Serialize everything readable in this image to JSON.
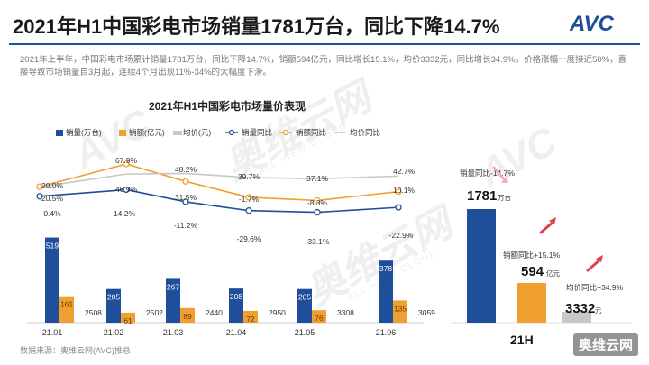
{
  "header": {
    "title": "2021年H1中国彩电市场销量1781万台，同比下降14.7%",
    "logo_text": "AVC",
    "summary": "2021年上半年，中国彩电市场累计销量1781万台，同比下降14.7%，销额594亿元，同比增长15.1%，均价3332元，同比增长34.9%。价格涨幅一度接近50%，直接导致市场销量自3月起，连续4个月出现11%-34%的大幅度下滑。"
  },
  "watermark": {
    "text": "奥维云网",
    "sub": "ALL VIEW CLOUD",
    "brand": "奥维云网"
  },
  "source": "数据来源：奥维云网(AVC)推总",
  "colors": {
    "volume": "#1f4e9a",
    "amount": "#f0a030",
    "price": "#c8c8c8",
    "accent": "#e04050"
  },
  "chart_data": [
    {
      "type": "bar",
      "title": "2021年H1中国彩电市场量价表现",
      "categories": [
        "21.01",
        "21.02",
        "21.03",
        "21.04",
        "21.05",
        "21.06"
      ],
      "series": [
        {
          "name": "销量(万台)",
          "type": "bar",
          "values": [
            519,
            205,
            267,
            208,
            205,
            378
          ]
        },
        {
          "name": "销额(亿元)",
          "type": "bar",
          "values": [
            161,
            61,
            89,
            72,
            76,
            135
          ]
        },
        {
          "name": "均价(元)",
          "type": "value-labels",
          "values": [
            2508,
            2502,
            2440,
            2950,
            3308,
            3059
          ]
        },
        {
          "name": "销量同比",
          "type": "line",
          "values": [
            0.4,
            14.2,
            -11.2,
            -29.6,
            -33.1,
            -22.9
          ],
          "labels": [
            "0.4%",
            "14.2%",
            "-11.2%",
            "-29.6%",
            "-33.1%",
            "-22.9%"
          ]
        },
        {
          "name": "销额同比",
          "type": "line",
          "values": [
            20.5,
            67.9,
            31.5,
            -1.7,
            -8.3,
            10.1
          ],
          "labels": [
            "20.5%",
            "67.9%",
            "31.5%",
            "-1.7%",
            "-8.3%",
            "10.1%"
          ]
        },
        {
          "name": "均价同比",
          "type": "line",
          "values": [
            20.0,
            46.9,
            48.2,
            39.7,
            37.1,
            42.7
          ],
          "labels": [
            "20.0%",
            "46.9%",
            "48.2%",
            "39.7%",
            "37.1%",
            "42.7%"
          ]
        }
      ],
      "legend": "top"
    },
    {
      "type": "bar",
      "categories": [
        "销量",
        "销额",
        "均价"
      ],
      "values": [
        1781,
        594,
        3332
      ],
      "value_labels": [
        "1781",
        "594",
        "3332"
      ],
      "units": [
        "万台",
        "亿元",
        "元"
      ],
      "annotations": [
        "销量同比-14.7%",
        "销额同比+15.1%",
        "均价同比+34.9%"
      ],
      "partial_label": "21H"
    }
  ]
}
